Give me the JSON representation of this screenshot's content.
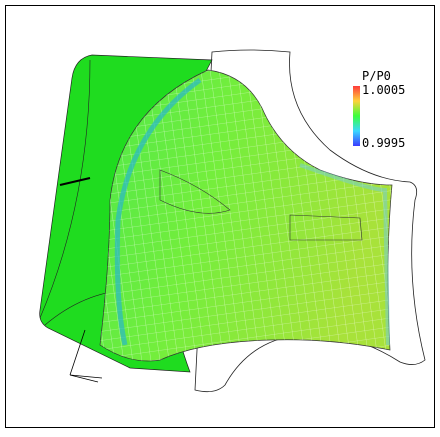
{
  "legend": {
    "title": "P/P0",
    "max_label": "1.0005",
    "min_label": "0.9995"
  }
}
